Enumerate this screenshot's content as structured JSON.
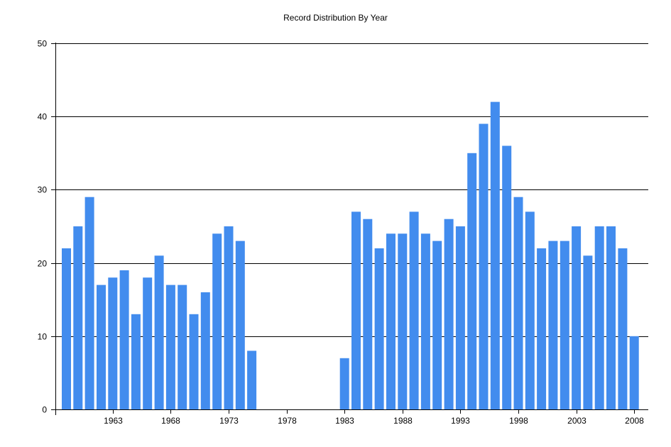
{
  "chart_data": {
    "type": "bar",
    "title": "Record Distribution By Year",
    "xlabel": "",
    "ylabel": "",
    "ylim": [
      0,
      50
    ],
    "yticks": [
      0,
      10,
      20,
      30,
      40,
      50
    ],
    "xticks": [
      "1963",
      "1968",
      "1973",
      "1978",
      "1983",
      "1988",
      "1993",
      "1998",
      "2003",
      "2008"
    ],
    "grid": "horizontal",
    "legend": "none",
    "bar_color": "#428CEE",
    "categories": [
      1959,
      1960,
      1961,
      1962,
      1963,
      1964,
      1965,
      1966,
      1967,
      1968,
      1969,
      1970,
      1971,
      1972,
      1973,
      1974,
      1975,
      1976,
      1977,
      1978,
      1979,
      1980,
      1981,
      1982,
      1983,
      1984,
      1985,
      1986,
      1987,
      1988,
      1989,
      1990,
      1991,
      1992,
      1993,
      1994,
      1995,
      1996,
      1997,
      1998,
      1999,
      2000,
      2001,
      2002,
      2003,
      2004,
      2005,
      2006,
      2007,
      2008
    ],
    "values": [
      22,
      25,
      29,
      17,
      18,
      19,
      13,
      18,
      21,
      17,
      17,
      13,
      16,
      24,
      25,
      23,
      8,
      0,
      0,
      0,
      0,
      0,
      0,
      0,
      7,
      27,
      26,
      22,
      24,
      24,
      27,
      24,
      23,
      26,
      25,
      35,
      39,
      42,
      36,
      29,
      27,
      22,
      23,
      23,
      25,
      21,
      25,
      25,
      22,
      10
    ]
  }
}
